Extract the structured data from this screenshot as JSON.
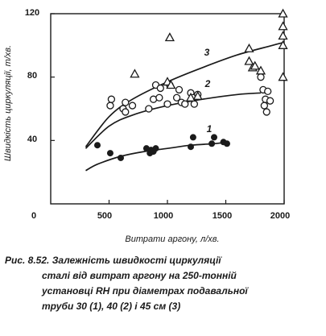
{
  "chart_data": {
    "type": "scatter",
    "xlabel": "Витрати аргону, л/хв.",
    "ylabel": "Швидкість циркуляції, т/хв.",
    "xlim": [
      0,
      2000
    ],
    "ylim": [
      0,
      120
    ],
    "xticks": [
      "500",
      "1000",
      "1500",
      "2000"
    ],
    "yticks": [
      "40",
      "80",
      "120"
    ],
    "origin_label": "0",
    "grid": false,
    "series": [
      {
        "name": "1",
        "marker": "filled-circle",
        "points": [
          [
            400,
            37
          ],
          [
            510,
            32
          ],
          [
            600,
            29
          ],
          [
            820,
            35
          ],
          [
            850,
            32
          ],
          [
            860,
            34
          ],
          [
            880,
            33
          ],
          [
            900,
            35
          ],
          [
            1200,
            36
          ],
          [
            1220,
            42
          ],
          [
            1380,
            38
          ],
          [
            1400,
            42
          ],
          [
            1480,
            39
          ],
          [
            1510,
            38
          ]
        ],
        "curve": [
          [
            300,
            21
          ],
          [
            400,
            25
          ],
          [
            600,
            30
          ],
          [
            800,
            33
          ],
          [
            1000,
            35
          ],
          [
            1200,
            37
          ],
          [
            1400,
            38
          ],
          [
            1530,
            39
          ]
        ]
      },
      {
        "name": "2",
        "marker": "open-circle",
        "points": [
          [
            510,
            62
          ],
          [
            520,
            66
          ],
          [
            620,
            60
          ],
          [
            640,
            64
          ],
          [
            640,
            58
          ],
          [
            700,
            62
          ],
          [
            840,
            60
          ],
          [
            880,
            66
          ],
          [
            900,
            75
          ],
          [
            930,
            67
          ],
          [
            940,
            73
          ],
          [
            1000,
            63
          ],
          [
            1020,
            75
          ],
          [
            1080,
            67
          ],
          [
            1100,
            72
          ],
          [
            1120,
            64
          ],
          [
            1150,
            63
          ],
          [
            1200,
            70
          ],
          [
            1220,
            67
          ],
          [
            1230,
            63
          ],
          [
            1260,
            69
          ],
          [
            1800,
            80
          ],
          [
            1820,
            72
          ],
          [
            1830,
            62
          ],
          [
            1840,
            66
          ],
          [
            1850,
            58
          ],
          [
            1860,
            71
          ],
          [
            1880,
            65
          ]
        ],
        "curve": [
          [
            300,
            35
          ],
          [
            500,
            49
          ],
          [
            700,
            56
          ],
          [
            1000,
            62
          ],
          [
            1300,
            66
          ],
          [
            1600,
            69
          ],
          [
            1800,
            70
          ]
        ]
      },
      {
        "name": "3",
        "marker": "open-triangle",
        "points": [
          [
            720,
            82
          ],
          [
            1020,
            105
          ],
          [
            1000,
            77
          ],
          [
            1030,
            75
          ],
          [
            1200,
            67
          ],
          [
            1260,
            68
          ],
          [
            1700,
            98
          ],
          [
            1700,
            90
          ],
          [
            1730,
            86
          ],
          [
            1750,
            87
          ],
          [
            1800,
            84
          ],
          [
            1990,
            120
          ],
          [
            1990,
            112
          ],
          [
            1990,
            106
          ],
          [
            1990,
            100
          ],
          [
            1990,
            80
          ]
        ],
        "curve": [
          [
            300,
            36
          ],
          [
            500,
            55
          ],
          [
            700,
            66
          ],
          [
            1000,
            77
          ],
          [
            1300,
            86
          ],
          [
            1600,
            94
          ],
          [
            1900,
            100
          ],
          [
            2000,
            102
          ]
        ]
      }
    ]
  },
  "caption": {
    "line1": "Рис. 8.52. Залежність швидкості циркуляції",
    "line2": "сталі від витрат аргону на 250-тонній",
    "line3": "установці RH при діаметрах подавальної",
    "line4": "труби 30 (1), 40 (2) і 45 см (3)"
  },
  "colors": {
    "ink": "#1a1a1a",
    "background": "#ffffff"
  }
}
